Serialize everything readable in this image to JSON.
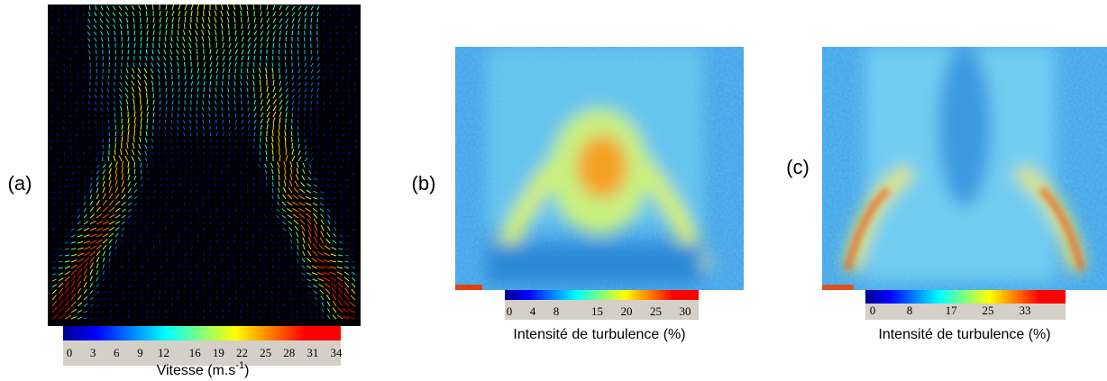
{
  "panels": [
    {
      "label": "(a)",
      "colorbar": {
        "lim": [
          0,
          34
        ],
        "ticks": [
          0,
          3,
          6,
          9,
          12,
          16,
          19,
          22,
          25,
          28,
          31,
          34
        ]
      },
      "caption": {
        "text": "Vitesse (m.s",
        "superscript": "-1",
        "close": ")"
      }
    },
    {
      "label": "(b)",
      "colorbar": {
        "lim": [
          0,
          32
        ],
        "ticks": [
          0,
          4,
          8,
          15,
          20,
          25,
          30
        ]
      },
      "caption": {
        "text": "Intensité de turbulence (%)"
      }
    },
    {
      "label": "(c)",
      "colorbar": {
        "lim": [
          0,
          41
        ],
        "ticks": [
          0,
          8,
          17,
          25,
          33
        ]
      },
      "caption": {
        "text": "Intensité de turbulence (%)"
      }
    }
  ]
}
